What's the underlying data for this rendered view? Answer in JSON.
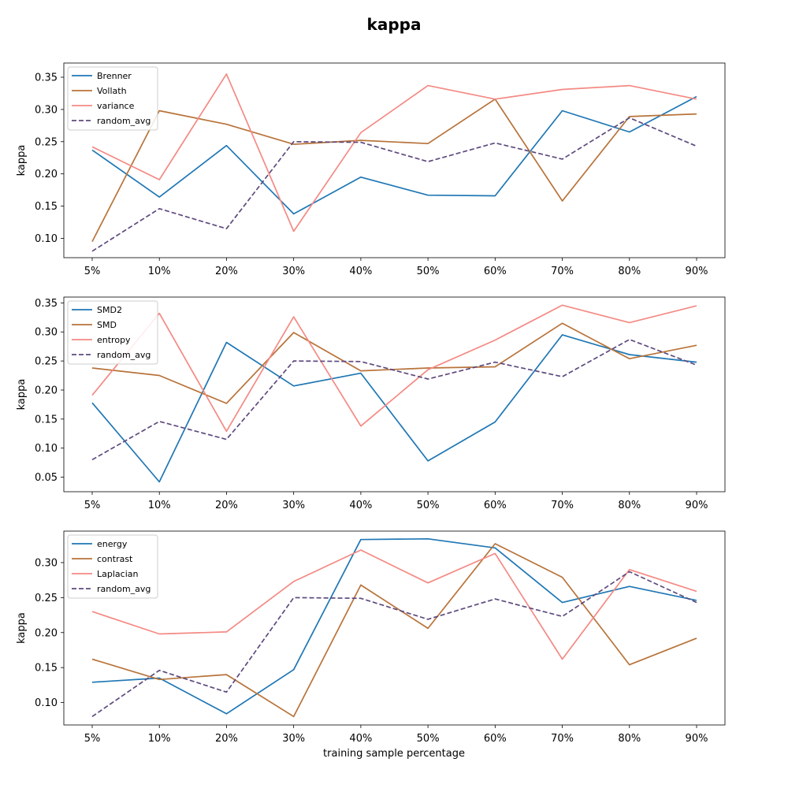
{
  "figure": {
    "title": "kappa",
    "xlabel": "training sample percentage"
  },
  "chart_data": [
    {
      "type": "line",
      "ylabel": "kappa",
      "categories": [
        "5%",
        "10%",
        "20%",
        "30%",
        "40%",
        "50%",
        "60%",
        "70%",
        "80%",
        "90%"
      ],
      "ylim": [
        0.07,
        0.372
      ],
      "yticks": [
        0.1,
        0.15,
        0.2,
        0.25,
        0.3,
        0.35
      ],
      "yticklabels": [
        "0.10",
        "0.15",
        "0.20",
        "0.25",
        "0.30",
        "0.35"
      ],
      "legend_position": "top-left",
      "grid": false,
      "series": [
        {
          "name": "Brenner",
          "color": "#1f77b4",
          "dashed": false,
          "values": [
            0.237,
            0.164,
            0.244,
            0.138,
            0.195,
            0.167,
            0.166,
            0.298,
            0.265,
            0.32
          ]
        },
        {
          "name": "Vollath",
          "color": "#b8733a",
          "dashed": false,
          "values": [
            0.095,
            0.298,
            0.277,
            0.246,
            0.252,
            0.247,
            0.316,
            0.158,
            0.289,
            0.293
          ]
        },
        {
          "name": "variance",
          "color": "#f48a84",
          "dashed": false,
          "values": [
            0.242,
            0.191,
            0.355,
            0.111,
            0.264,
            0.337,
            0.316,
            0.331,
            0.337,
            0.316
          ]
        },
        {
          "name": "random_avg",
          "color": "#5e4a7e",
          "dashed": true,
          "values": [
            0.08,
            0.146,
            0.115,
            0.25,
            0.249,
            0.219,
            0.248,
            0.223,
            0.287,
            0.243
          ]
        }
      ]
    },
    {
      "type": "line",
      "ylabel": "kappa",
      "categories": [
        "5%",
        "10%",
        "20%",
        "30%",
        "40%",
        "50%",
        "60%",
        "70%",
        "80%",
        "90%"
      ],
      "ylim": [
        0.025,
        0.36
      ],
      "yticks": [
        0.05,
        0.1,
        0.15,
        0.2,
        0.25,
        0.3,
        0.35
      ],
      "yticklabels": [
        "0.05",
        "0.10",
        "0.15",
        "0.20",
        "0.25",
        "0.30",
        "0.35"
      ],
      "legend_position": "top-left",
      "grid": false,
      "series": [
        {
          "name": "SMD2",
          "color": "#1f77b4",
          "dashed": false,
          "values": [
            0.178,
            0.042,
            0.282,
            0.207,
            0.229,
            0.078,
            0.145,
            0.295,
            0.261,
            0.248
          ]
        },
        {
          "name": "SMD",
          "color": "#b8733a",
          "dashed": false,
          "values": [
            0.238,
            0.225,
            0.177,
            0.299,
            0.233,
            0.238,
            0.24,
            0.315,
            0.254,
            0.277
          ]
        },
        {
          "name": "entropy",
          "color": "#f48a84",
          "dashed": false,
          "values": [
            0.191,
            0.332,
            0.129,
            0.326,
            0.138,
            0.235,
            0.286,
            0.346,
            0.316,
            0.345
          ]
        },
        {
          "name": "random_avg",
          "color": "#5e4a7e",
          "dashed": true,
          "values": [
            0.08,
            0.146,
            0.115,
            0.25,
            0.249,
            0.219,
            0.248,
            0.223,
            0.287,
            0.243
          ]
        }
      ]
    },
    {
      "type": "line",
      "ylabel": "kappa",
      "xlabel": "training sample percentage",
      "categories": [
        "5%",
        "10%",
        "20%",
        "30%",
        "40%",
        "50%",
        "60%",
        "70%",
        "80%",
        "90%"
      ],
      "ylim": [
        0.068,
        0.345
      ],
      "yticks": [
        0.1,
        0.15,
        0.2,
        0.25,
        0.3
      ],
      "yticklabels": [
        "0.10",
        "0.15",
        "0.20",
        "0.25",
        "0.30"
      ],
      "legend_position": "top-left",
      "grid": false,
      "series": [
        {
          "name": "energy",
          "color": "#1f77b4",
          "dashed": false,
          "values": [
            0.129,
            0.135,
            0.084,
            0.147,
            0.333,
            0.334,
            0.321,
            0.243,
            0.266,
            0.246
          ]
        },
        {
          "name": "contrast",
          "color": "#b8733a",
          "dashed": false,
          "values": [
            0.162,
            0.133,
            0.14,
            0.08,
            0.268,
            0.206,
            0.327,
            0.279,
            0.154,
            0.192
          ]
        },
        {
          "name": "Laplacian",
          "color": "#f48a84",
          "dashed": false,
          "values": [
            0.23,
            0.198,
            0.201,
            0.273,
            0.318,
            0.271,
            0.313,
            0.162,
            0.29,
            0.259
          ]
        },
        {
          "name": "random_avg",
          "color": "#5e4a7e",
          "dashed": true,
          "values": [
            0.08,
            0.146,
            0.115,
            0.25,
            0.249,
            0.219,
            0.248,
            0.223,
            0.287,
            0.243
          ]
        }
      ]
    }
  ]
}
